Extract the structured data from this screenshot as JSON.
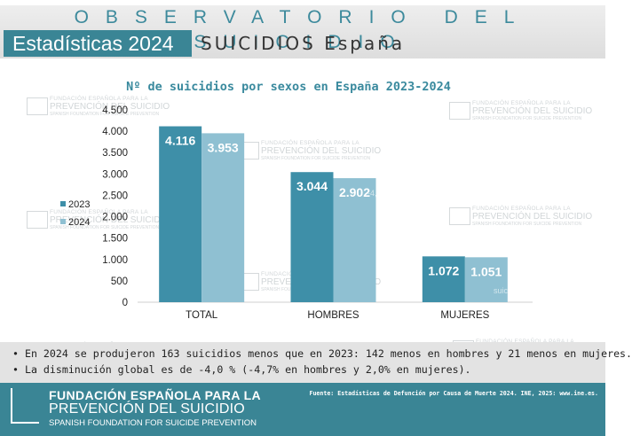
{
  "header": {
    "observatorio": "OBSERVATORIO DEL SUICIDIO",
    "badge": "Estadísticas 2024",
    "subtitle": "SUICIDIOS España"
  },
  "watermark": {
    "line1": "FUNDACIÓN ESPAÑOLA PARA LA",
    "line2": "PREVENCIÓN DEL SUICIDIO",
    "line3": "SPANISH FOUNDATION FOR SUICIDE PREVENTION"
  },
  "ghost_text": {
    "hombres": "-4,7%",
    "mujeres": "suicidios"
  },
  "chart_data": {
    "type": "bar",
    "title": "Nº de suicidios por sexos en España 2023-2024",
    "categories": [
      "TOTAL",
      "HOMBRES",
      "MUJERES"
    ],
    "series": [
      {
        "name": "2023",
        "values": [
          4116,
          3044,
          1072
        ],
        "labels": [
          "4.116",
          "3.044",
          "1.072"
        ],
        "color": "#3e8fa8"
      },
      {
        "name": "2024",
        "values": [
          3953,
          2902,
          1051
        ],
        "labels": [
          "3.953",
          "2.902",
          "1.051"
        ],
        "color": "#8fc0d2"
      }
    ],
    "ylim": [
      0,
      4500
    ],
    "yticks": [
      0,
      500,
      1000,
      1500,
      2000,
      2500,
      3000,
      3500,
      4000,
      4500
    ],
    "ytick_labels": [
      "0",
      "500",
      "1.000",
      "1.500",
      "2.000",
      "2.500",
      "3.000",
      "3.500",
      "4.000",
      "4.500"
    ],
    "legend_position": "left",
    "grid": false
  },
  "bullets": [
    "En 2024 se produjeron 163 suicidios menos que en 2023: 142 menos en hombres y 21 menos en mujeres.",
    "La disminución global es de -4,0 % (-4,7% en hombres y 2,0% en mujeres)."
  ],
  "footer": {
    "line1": "FUNDACIÓN ESPAÑOLA PARA LA",
    "line2": "PREVENCIÓN DEL SUICIDIO",
    "line3": "SPANISH FOUNDATION FOR SUICIDE PREVENTION",
    "source": "Fuente: Estadísticas de Defunción por Causa de Muerte 2024. INE, 2025: www.ine.es."
  },
  "colors": {
    "brand_teal": "#3a8595",
    "series_2023": "#3e8fa8",
    "series_2024": "#8fc0d2"
  }
}
